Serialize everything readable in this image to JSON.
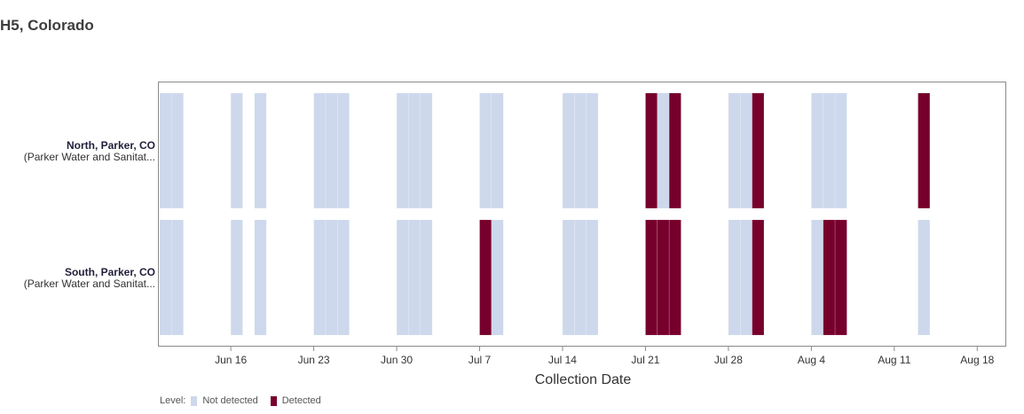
{
  "page": {
    "title": "H5, Colorado"
  },
  "legend": {
    "title": "Level:",
    "items": [
      {
        "label": "Not detected",
        "color": "#cdd8ec"
      },
      {
        "label": "Detected",
        "color": "#76002b"
      }
    ]
  },
  "chart_data": {
    "type": "heatmap",
    "xlabel": "Collection Date",
    "x_ticks": [
      "Jun 16",
      "Jun 23",
      "Jun 30",
      "Jul 7",
      "Jul 14",
      "Jul 21",
      "Jul 28",
      "Aug 4",
      "Aug 11",
      "Aug 18"
    ],
    "x_tick_dates": [
      "2024-06-16",
      "2024-06-23",
      "2024-06-30",
      "2024-07-07",
      "2024-07-14",
      "2024-07-21",
      "2024-07-28",
      "2024-08-04",
      "2024-08-11",
      "2024-08-18"
    ],
    "x_range": [
      "2024-06-10",
      "2024-08-20"
    ],
    "levels": {
      "nd": "Not detected",
      "d": "Detected"
    },
    "rows": [
      {
        "name": "North, Parker, CO",
        "subtitle": "(Parker Water and Sanitat...",
        "samples": [
          {
            "date": "2024-06-10",
            "level": "nd"
          },
          {
            "date": "2024-06-11",
            "level": "nd"
          },
          {
            "date": "2024-06-16",
            "level": "nd"
          },
          {
            "date": "2024-06-18",
            "level": "nd"
          },
          {
            "date": "2024-06-23",
            "level": "nd"
          },
          {
            "date": "2024-06-24",
            "level": "nd"
          },
          {
            "date": "2024-06-25",
            "level": "nd"
          },
          {
            "date": "2024-06-30",
            "level": "nd"
          },
          {
            "date": "2024-07-01",
            "level": "nd"
          },
          {
            "date": "2024-07-02",
            "level": "nd"
          },
          {
            "date": "2024-07-07",
            "level": "nd"
          },
          {
            "date": "2024-07-08",
            "level": "nd"
          },
          {
            "date": "2024-07-14",
            "level": "nd"
          },
          {
            "date": "2024-07-15",
            "level": "nd"
          },
          {
            "date": "2024-07-16",
            "level": "nd"
          },
          {
            "date": "2024-07-21",
            "level": "d"
          },
          {
            "date": "2024-07-22",
            "level": "nd"
          },
          {
            "date": "2024-07-23",
            "level": "d"
          },
          {
            "date": "2024-07-28",
            "level": "nd"
          },
          {
            "date": "2024-07-29",
            "level": "nd"
          },
          {
            "date": "2024-07-30",
            "level": "d"
          },
          {
            "date": "2024-08-04",
            "level": "nd"
          },
          {
            "date": "2024-08-05",
            "level": "nd"
          },
          {
            "date": "2024-08-06",
            "level": "nd"
          },
          {
            "date": "2024-08-13",
            "level": "d"
          }
        ]
      },
      {
        "name": "South, Parker, CO",
        "subtitle": "(Parker Water and Sanitat...",
        "samples": [
          {
            "date": "2024-06-10",
            "level": "nd"
          },
          {
            "date": "2024-06-11",
            "level": "nd"
          },
          {
            "date": "2024-06-16",
            "level": "nd"
          },
          {
            "date": "2024-06-18",
            "level": "nd"
          },
          {
            "date": "2024-06-23",
            "level": "nd"
          },
          {
            "date": "2024-06-24",
            "level": "nd"
          },
          {
            "date": "2024-06-25",
            "level": "nd"
          },
          {
            "date": "2024-06-30",
            "level": "nd"
          },
          {
            "date": "2024-07-01",
            "level": "nd"
          },
          {
            "date": "2024-07-02",
            "level": "nd"
          },
          {
            "date": "2024-07-07",
            "level": "d"
          },
          {
            "date": "2024-07-08",
            "level": "nd"
          },
          {
            "date": "2024-07-14",
            "level": "nd"
          },
          {
            "date": "2024-07-15",
            "level": "nd"
          },
          {
            "date": "2024-07-16",
            "level": "nd"
          },
          {
            "date": "2024-07-21",
            "level": "d"
          },
          {
            "date": "2024-07-22",
            "level": "d"
          },
          {
            "date": "2024-07-23",
            "level": "d"
          },
          {
            "date": "2024-07-28",
            "level": "nd"
          },
          {
            "date": "2024-07-29",
            "level": "nd"
          },
          {
            "date": "2024-07-30",
            "level": "d"
          },
          {
            "date": "2024-08-04",
            "level": "nd"
          },
          {
            "date": "2024-08-05",
            "level": "d"
          },
          {
            "date": "2024-08-06",
            "level": "d"
          },
          {
            "date": "2024-08-13",
            "level": "nd"
          }
        ]
      }
    ]
  }
}
